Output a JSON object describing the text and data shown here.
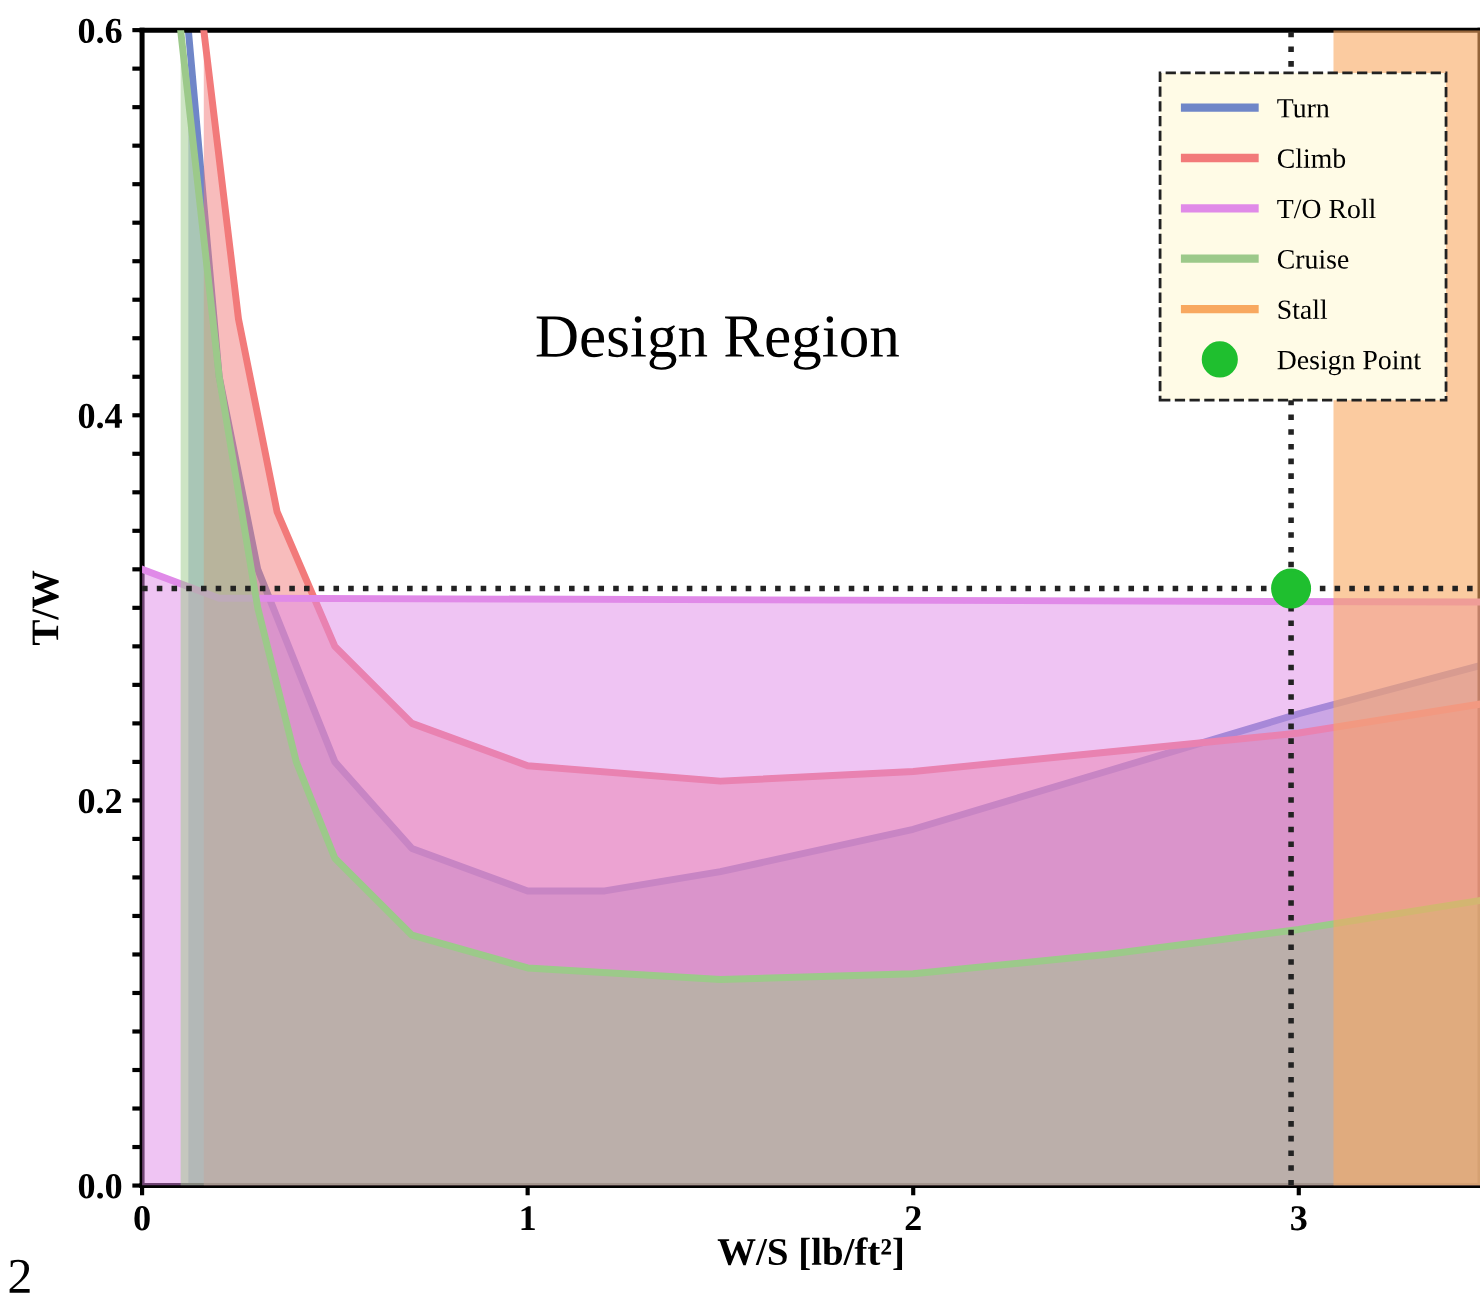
{
  "chart_data": {
    "type": "area",
    "xlabel": "W/S [lb/ft²]",
    "ylabel": "T/W",
    "xlim": [
      0,
      3.47
    ],
    "ylim": [
      0,
      0.6
    ],
    "xticks": [
      0,
      1,
      2,
      3
    ],
    "yticks": [
      {
        "value": 0.0,
        "label": "0.0"
      },
      {
        "value": 0.02,
        "label": null
      },
      {
        "value": 0.04,
        "label": null
      },
      {
        "value": 0.06,
        "label": null
      },
      {
        "value": 0.08,
        "label": null
      },
      {
        "value": 0.1,
        "label": null
      },
      {
        "value": 0.12,
        "label": null
      },
      {
        "value": 0.14,
        "label": null
      },
      {
        "value": 0.16,
        "label": null
      },
      {
        "value": 0.18,
        "label": null
      },
      {
        "value": 0.2,
        "label": "0.2"
      },
      {
        "value": 0.22,
        "label": null
      },
      {
        "value": 0.24,
        "label": null
      },
      {
        "value": 0.26,
        "label": null
      },
      {
        "value": 0.28,
        "label": null
      },
      {
        "value": 0.3,
        "label": null
      },
      {
        "value": 0.32,
        "label": null
      },
      {
        "value": 0.34,
        "label": null
      },
      {
        "value": 0.36,
        "label": null
      },
      {
        "value": 0.38,
        "label": null
      },
      {
        "value": 0.4,
        "label": "0.4"
      },
      {
        "value": 0.42,
        "label": null
      },
      {
        "value": 0.44,
        "label": null
      },
      {
        "value": 0.46,
        "label": null
      },
      {
        "value": 0.48,
        "label": null
      },
      {
        "value": 0.5,
        "label": null
      },
      {
        "value": 0.52,
        "label": null
      },
      {
        "value": 0.54,
        "label": null
      },
      {
        "value": 0.56,
        "label": null
      },
      {
        "value": 0.58,
        "label": null
      },
      {
        "value": 0.6,
        "label": "0.6"
      }
    ],
    "series": [
      {
        "name": "Turn",
        "color": "#6f86c8",
        "x": [
          0.12,
          0.2,
          0.3,
          0.5,
          0.7,
          1.0,
          1.2,
          1.5,
          2.0,
          2.5,
          3.0,
          3.47
        ],
        "values": [
          0.6,
          0.42,
          0.32,
          0.22,
          0.175,
          0.153,
          0.153,
          0.163,
          0.185,
          0.215,
          0.245,
          0.27
        ]
      },
      {
        "name": "Climb",
        "color": "#f27a7a",
        "x": [
          0.16,
          0.25,
          0.35,
          0.5,
          0.7,
          1.0,
          1.5,
          2.0,
          2.5,
          3.0,
          3.47
        ],
        "values": [
          0.6,
          0.45,
          0.35,
          0.28,
          0.24,
          0.218,
          0.21,
          0.215,
          0.225,
          0.235,
          0.25
        ]
      },
      {
        "name": "T/O Roll",
        "color": "#e08ae8",
        "x": [
          0,
          0.2,
          3.47
        ],
        "values": [
          0.32,
          0.305,
          0.303
        ]
      },
      {
        "name": "Cruise",
        "color": "#9cc98a",
        "x": [
          0.1,
          0.2,
          0.3,
          0.4,
          0.5,
          0.7,
          1.0,
          1.5,
          2.0,
          2.5,
          3.0,
          3.47
        ],
        "values": [
          0.6,
          0.42,
          0.3,
          0.22,
          0.17,
          0.13,
          0.113,
          0.107,
          0.11,
          0.12,
          0.133,
          0.148
        ]
      },
      {
        "name": "Design Point",
        "type": "scatter",
        "marker": "circle",
        "color": "#1fbf2f",
        "x": [
          2.98
        ],
        "values": [
          0.31
        ]
      }
    ],
    "bands": [
      {
        "axis": "x",
        "from": 3.09,
        "to": 3.47,
        "label": "Stall",
        "color": "#f8a860"
      }
    ],
    "ref_lines": [
      {
        "axis": "x",
        "value": 2.98,
        "line_style": "dotted"
      },
      {
        "axis": "y",
        "value": 0.31,
        "line_style": "dotted"
      }
    ],
    "annotations": [
      "Design Region",
      "2"
    ],
    "legend": "top right"
  }
}
